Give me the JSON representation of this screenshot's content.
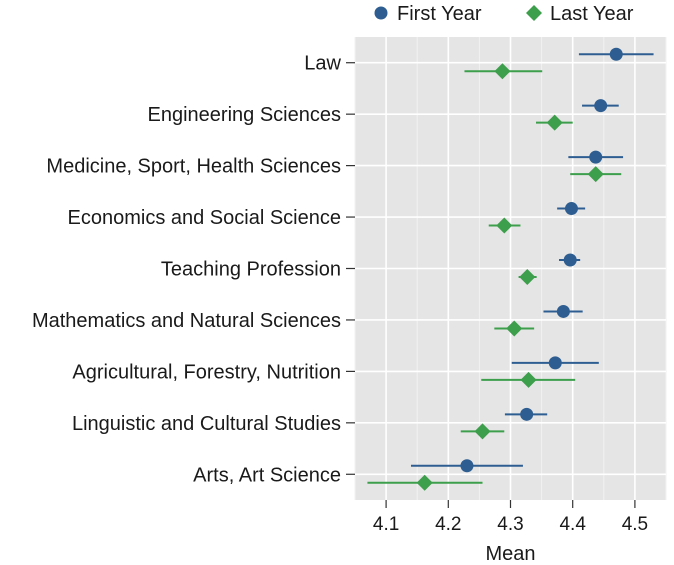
{
  "chart_data": {
    "type": "scatter",
    "xlabel": "Mean",
    "ylabel": "",
    "xlim": [
      4.05,
      4.55
    ],
    "xticks": [
      4.1,
      4.2,
      4.3,
      4.4,
      4.5
    ],
    "xtick_labels": [
      "4.1",
      "4.2",
      "4.3",
      "4.4",
      "4.5"
    ],
    "grid": true,
    "legend_position": "top",
    "categories": [
      "Law",
      "Engineering Sciences",
      "Medicine, Sport, Health Sciences",
      "Economics and Social Science",
      "Teaching Profession",
      "Mathematics and Natural Sciences",
      "Agricultural, Forestry, Nutrition",
      "Linguistic and Cultural Studies",
      "Arts, Art Science"
    ],
    "series": [
      {
        "name": "First Year",
        "color": "#2e5e91",
        "marker": "circle",
        "values": [
          4.47,
          4.445,
          4.437,
          4.398,
          4.396,
          4.385,
          4.372,
          4.326,
          4.23
        ],
        "ci_lower": [
          4.41,
          4.415,
          4.393,
          4.375,
          4.378,
          4.353,
          4.302,
          4.291,
          4.14
        ],
        "ci_upper": [
          4.53,
          4.474,
          4.481,
          4.42,
          4.412,
          4.416,
          4.442,
          4.359,
          4.32
        ]
      },
      {
        "name": "Last Year",
        "color": "#3d9e4c",
        "marker": "diamond",
        "values": [
          4.287,
          4.371,
          4.437,
          4.29,
          4.327,
          4.306,
          4.329,
          4.255,
          4.162
        ],
        "ci_lower": [
          4.226,
          4.341,
          4.396,
          4.265,
          4.313,
          4.274,
          4.253,
          4.22,
          4.07
        ],
        "ci_upper": [
          4.351,
          4.4,
          4.478,
          4.316,
          4.342,
          4.338,
          4.404,
          4.29,
          4.255
        ]
      }
    ]
  }
}
